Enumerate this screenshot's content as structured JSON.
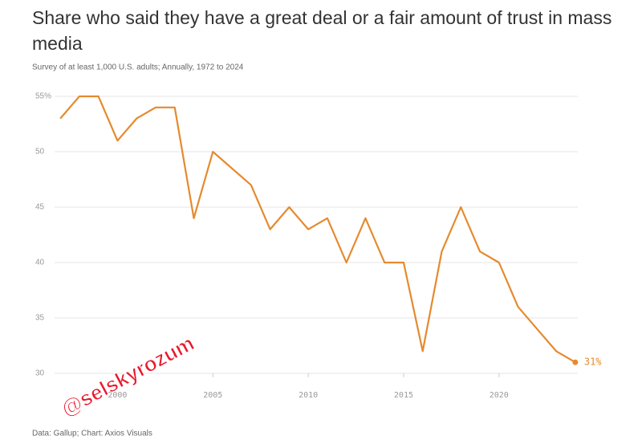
{
  "chart_data": {
    "type": "line",
    "title": "Share who said they have a great deal or a fair amount of trust in mass media",
    "subtitle": "Survey of at least 1,000 U.S. adults; Annually, 1972 to 2024",
    "source": "Data: Gallup; Chart: Axios Visuals",
    "annotation": "@selskyrozum",
    "x": [
      1997,
      1998,
      1999,
      2000,
      2001,
      2002,
      2003,
      2004,
      2005,
      2007,
      2008,
      2009,
      2010,
      2011,
      2012,
      2013,
      2014,
      2015,
      2016,
      2017,
      2018,
      2019,
      2020,
      2021,
      2022,
      2023,
      2024
    ],
    "series": [
      {
        "color": "#e58a2e",
        "values": [
          53,
          55,
          55,
          51,
          53,
          54,
          54,
          44,
          50,
          47,
          43,
          45,
          43,
          44,
          40,
          44,
          40,
          40,
          32,
          41,
          45,
          41,
          40,
          36,
          34,
          32,
          31
        ],
        "value_labels": [
          null,
          null,
          null,
          null,
          null,
          null,
          null,
          null,
          null,
          null,
          null,
          null,
          null,
          null,
          null,
          null,
          null,
          null,
          null,
          null,
          null,
          null,
          null,
          null,
          null,
          null,
          "31%"
        ]
      }
    ],
    "xlim": [
      1996.7,
      2024.3
    ],
    "xticks": [
      2000,
      2005,
      2010,
      2015,
      2020
    ],
    "ylim": [
      30,
      55
    ],
    "yticks": [
      30,
      35,
      40,
      45,
      50,
      {
        "value": 55,
        "label": "55%"
      }
    ],
    "grid": true
  }
}
